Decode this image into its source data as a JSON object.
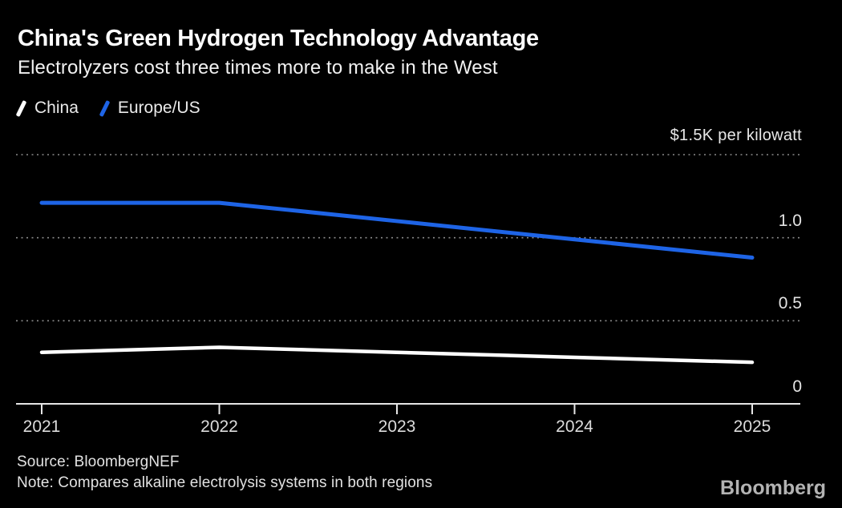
{
  "header": {
    "title": "China's Green Hydrogen Technology Advantage",
    "subtitle": "Electrolyzers cost three times more to make in the West"
  },
  "legend": [
    {
      "label": "China",
      "color": "#ffffff"
    },
    {
      "label": "Europe/US",
      "color": "#1e64e6"
    }
  ],
  "chart_data": {
    "type": "line",
    "x": [
      2021,
      2022,
      2023,
      2024,
      2025
    ],
    "x_tick_labels": [
      "2021",
      "2022",
      "2023",
      "2024",
      "2025"
    ],
    "series": [
      {
        "name": "China",
        "color": "#ffffff",
        "stroke_width": 4.5,
        "values": [
          0.31,
          0.34,
          0.31,
          0.28,
          0.25
        ]
      },
      {
        "name": "Europe/US",
        "color": "#1e64e6",
        "stroke_width": 5,
        "values": [
          1.21,
          1.21,
          1.1,
          0.99,
          0.88
        ]
      }
    ],
    "title": "China's Green Hydrogen Technology Advantage",
    "subtitle": "Electrolyzers cost three times more to make in the West",
    "unit_label": "$1.5K per kilowatt",
    "xlabel": "",
    "ylabel": "$ per kilowatt (thousands)",
    "xlim": [
      2021,
      2025
    ],
    "ylim": [
      0,
      1.5
    ],
    "y_axis": {
      "gridline_values": [
        1.5,
        1.0,
        0.5
      ],
      "tick_labels": [
        {
          "value": 1.0,
          "label": "1.0"
        },
        {
          "value": 0.5,
          "label": "0.5"
        },
        {
          "value": 0,
          "label": "0"
        }
      ]
    },
    "grid": "horizontal dotted",
    "legend_position": "top-left"
  },
  "footer": {
    "source": "Source: BloombergNEF",
    "note": "Note: Compares alkaline electrolysis systems in both regions",
    "logo": "Bloomberg"
  },
  "colors": {
    "background": "#000000",
    "china_line": "#ffffff",
    "europe_line": "#1e64e6",
    "gridline": "#8a8a8a",
    "axis": "#e6e6e6"
  }
}
